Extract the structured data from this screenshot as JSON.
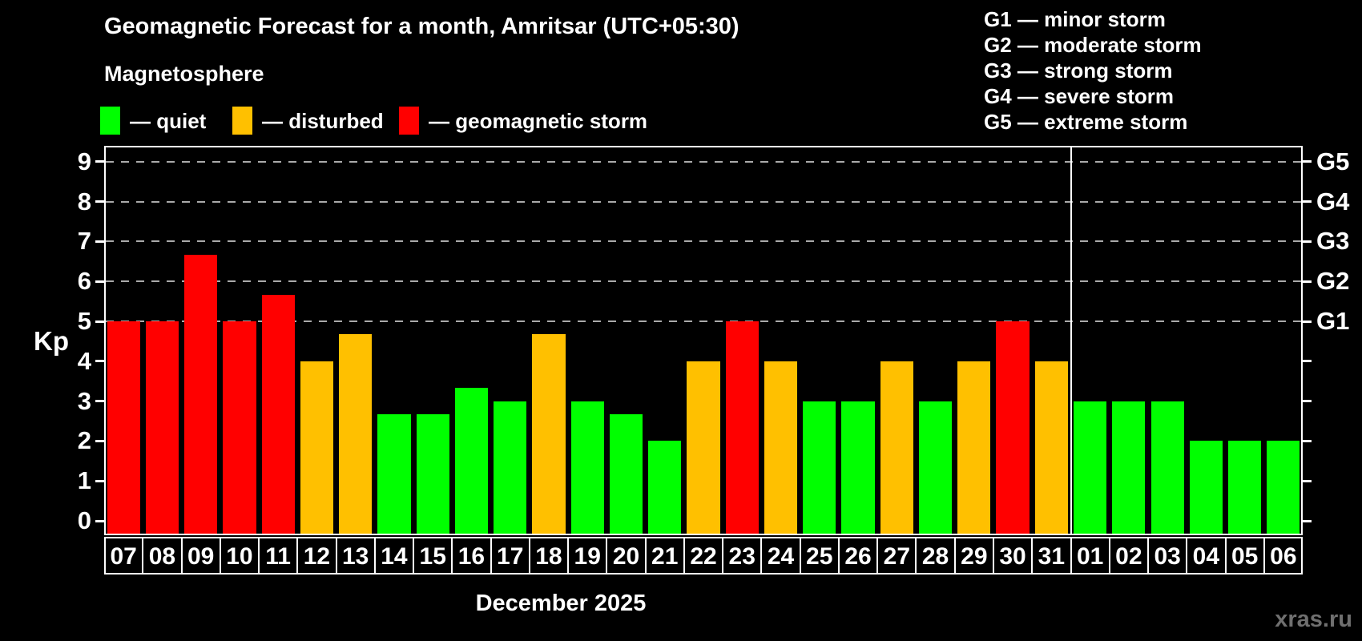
{
  "title": "Geomagnetic Forecast for a month, Amritsar (UTC+05:30)",
  "subtitle": "Magnetosphere",
  "legend": {
    "items": [
      {
        "label": "— quiet",
        "status": "quiet",
        "color": "#00ff00"
      },
      {
        "label": "— disturbed",
        "status": "disturbed",
        "color": "#ffc000"
      },
      {
        "label": "— geomagnetic storm",
        "status": "storm",
        "color": "#ff0000"
      }
    ]
  },
  "storm_scale": {
    "lines": [
      "G1 — minor storm",
      "G2 — moderate storm",
      "G3 — strong storm",
      "G4 — severe storm",
      "G5 — extreme storm"
    ]
  },
  "y_axis": {
    "label": "Kp",
    "ticks": [
      "0",
      "1",
      "2",
      "3",
      "4",
      "5",
      "6",
      "7",
      "8",
      "9"
    ]
  },
  "right_axis": {
    "labels": [
      {
        "kp": 5,
        "text": "G1"
      },
      {
        "kp": 6,
        "text": "G2"
      },
      {
        "kp": 7,
        "text": "G3"
      },
      {
        "kp": 8,
        "text": "G4"
      },
      {
        "kp": 9,
        "text": "G5"
      }
    ]
  },
  "x_axis": {
    "month_label": "December 2025"
  },
  "watermark": "xras.ru",
  "chart_data": {
    "type": "bar",
    "title": "Geomagnetic Forecast for a month, Amritsar (UTC+05:30)",
    "xlabel": "December 2025",
    "ylabel": "Kp",
    "ylim": [
      0,
      9
    ],
    "grid": "dashed horizontal lines at Kp 5-9 (G1-G5)",
    "legend_position": "top-left",
    "categories": [
      "07",
      "08",
      "09",
      "10",
      "11",
      "12",
      "13",
      "14",
      "15",
      "16",
      "17",
      "18",
      "19",
      "20",
      "21",
      "22",
      "23",
      "24",
      "25",
      "26",
      "27",
      "28",
      "29",
      "30",
      "31",
      "01",
      "02",
      "03",
      "04",
      "05",
      "06"
    ],
    "values": [
      5,
      5,
      6.67,
      5,
      5.67,
      4,
      4.67,
      2.67,
      2.67,
      3.33,
      3,
      4.67,
      3,
      2.67,
      2,
      4,
      5,
      4,
      3,
      3,
      4,
      3,
      4,
      5,
      4,
      3,
      3,
      3,
      2,
      2,
      2
    ],
    "statuses": [
      "storm",
      "storm",
      "storm",
      "storm",
      "storm",
      "disturbed",
      "disturbed",
      "quiet",
      "quiet",
      "quiet",
      "quiet",
      "disturbed",
      "quiet",
      "quiet",
      "quiet",
      "disturbed",
      "storm",
      "disturbed",
      "quiet",
      "quiet",
      "disturbed",
      "quiet",
      "disturbed",
      "storm",
      "disturbed",
      "quiet",
      "quiet",
      "quiet",
      "quiet",
      "quiet",
      "quiet"
    ],
    "colors": {
      "quiet": "#00ff00",
      "disturbed": "#ffc000",
      "storm": "#ff0000"
    },
    "gridlines_kp": [
      5,
      6,
      7,
      8,
      9
    ],
    "month_divider_after_index": 24
  }
}
